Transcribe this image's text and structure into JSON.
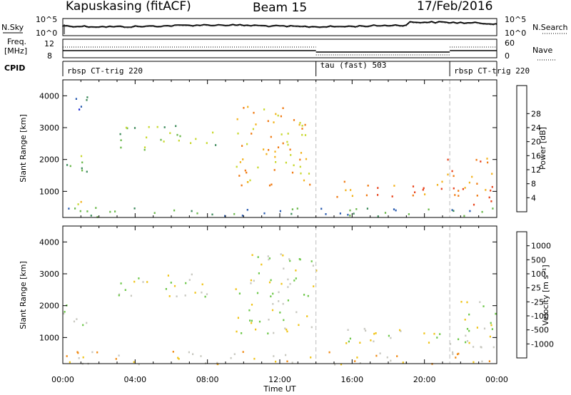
{
  "header": {
    "station": "Kapuskasing (fitACF)",
    "beam": "Beam 15",
    "date": "17/Feb/2016"
  },
  "strip_labels": {
    "nsky": "N.Sky",
    "nsearch": "N.Search",
    "freq_line1": "Freq.",
    "freq_line2": "[MHz]",
    "nave": "Nave",
    "cpid": "CPID",
    "noise_ticks": [
      "10^5",
      "10^0"
    ],
    "freq_ticks": [
      "12",
      "8"
    ],
    "nave_ticks": [
      "60",
      "0"
    ]
  },
  "cpid_segments": [
    {
      "start_hour": 0.0,
      "end_hour": 14.0,
      "label": "rbsp CT-trig 220"
    },
    {
      "start_hour": 14.0,
      "end_hour": 21.4,
      "label": "tau (fast) 503"
    },
    {
      "start_hour": 21.4,
      "end_hour": 24.0,
      "label": "rbsp CT-trig 220"
    }
  ],
  "chart_data": [
    {
      "type": "heatmap",
      "quantity": "Power",
      "ylabel": "Slant Range [km]",
      "xlabel": "Time UT",
      "xlim_hours": [
        0,
        24
      ],
      "ylim": [
        180,
        4500
      ],
      "y_ticks": [
        "1000",
        "2000",
        "3000",
        "4000"
      ],
      "x_ticks": [
        "00:00",
        "04:00",
        "08:00",
        "12:00",
        "16:00",
        "20:00",
        "00:00"
      ],
      "colorbar_label": "Power [dB]",
      "colorbar_ticks": [
        "4",
        "8",
        "12",
        "16",
        "20",
        "24",
        "28"
      ],
      "colors": [
        "#1e2bd6",
        "#2a5cb0",
        "#3c8a5a",
        "#6ab84a",
        "#c8d82e",
        "#f3b21c",
        "#f07a12",
        "#e8421a",
        "#d41414"
      ],
      "echo_regions": [
        {
          "t0": 0.0,
          "t1": 1.5,
          "r0": 1400,
          "r1": 2200,
          "level": 3
        },
        {
          "t0": 0.5,
          "t1": 2.0,
          "r0": 3400,
          "r1": 4000,
          "level": 1
        },
        {
          "t0": 0.8,
          "t1": 2.2,
          "r0": 350,
          "r1": 800,
          "level": 4
        },
        {
          "t0": 3.0,
          "t1": 8.5,
          "r0": 2300,
          "r1": 3100,
          "level": 3
        },
        {
          "t0": 9.5,
          "t1": 14.0,
          "r0": 1100,
          "r1": 3700,
          "level": 5
        },
        {
          "t0": 14.0,
          "t1": 21.2,
          "r0": 850,
          "r1": 1350,
          "level": 6
        },
        {
          "t0": 21.2,
          "t1": 24.0,
          "r0": 600,
          "r1": 2200,
          "level": 6
        },
        {
          "t0": 0.0,
          "t1": 24.0,
          "r0": 180,
          "r1": 500,
          "level": 2
        }
      ]
    },
    {
      "type": "heatmap",
      "quantity": "Velocity",
      "ylabel": "Slant Range [km]",
      "xlabel": "Time UT",
      "xlim_hours": [
        0,
        24
      ],
      "ylim": [
        180,
        4500
      ],
      "y_ticks": [
        "1000",
        "2000",
        "3000",
        "4000"
      ],
      "x_ticks": [
        "00:00",
        "04:00",
        "08:00",
        "12:00",
        "16:00",
        "20:00",
        "00:00"
      ],
      "colorbar_label": "Velocity [m s⁻¹]",
      "colorbar_ticks": [
        "1000",
        "500",
        "100",
        "25",
        "-25",
        "-100",
        "-500",
        "-1000"
      ],
      "colors": [
        "#1e2bd6",
        "#2a6aa8",
        "#3c8a5a",
        "#6ec84a",
        "#c8c8c0",
        "#f0c419",
        "#f08a14",
        "#e8521a",
        "#d41414"
      ],
      "echo_regions": [
        {
          "t0": 0.0,
          "t1": 1.5,
          "r0": 1400,
          "r1": 2200,
          "level": 4
        },
        {
          "t0": 3.0,
          "t1": 8.5,
          "r0": 2300,
          "r1": 3100,
          "level": 4
        },
        {
          "t0": 9.5,
          "t1": 14.0,
          "r0": 1100,
          "r1": 3700,
          "level": 4
        },
        {
          "t0": 14.0,
          "t1": 21.2,
          "r0": 850,
          "r1": 1350,
          "level": 4
        },
        {
          "t0": 21.2,
          "t1": 24.0,
          "r0": 600,
          "r1": 2200,
          "level": 4
        },
        {
          "t0": 0.0,
          "t1": 24.0,
          "r0": 180,
          "r1": 600,
          "level": 5
        }
      ]
    }
  ]
}
